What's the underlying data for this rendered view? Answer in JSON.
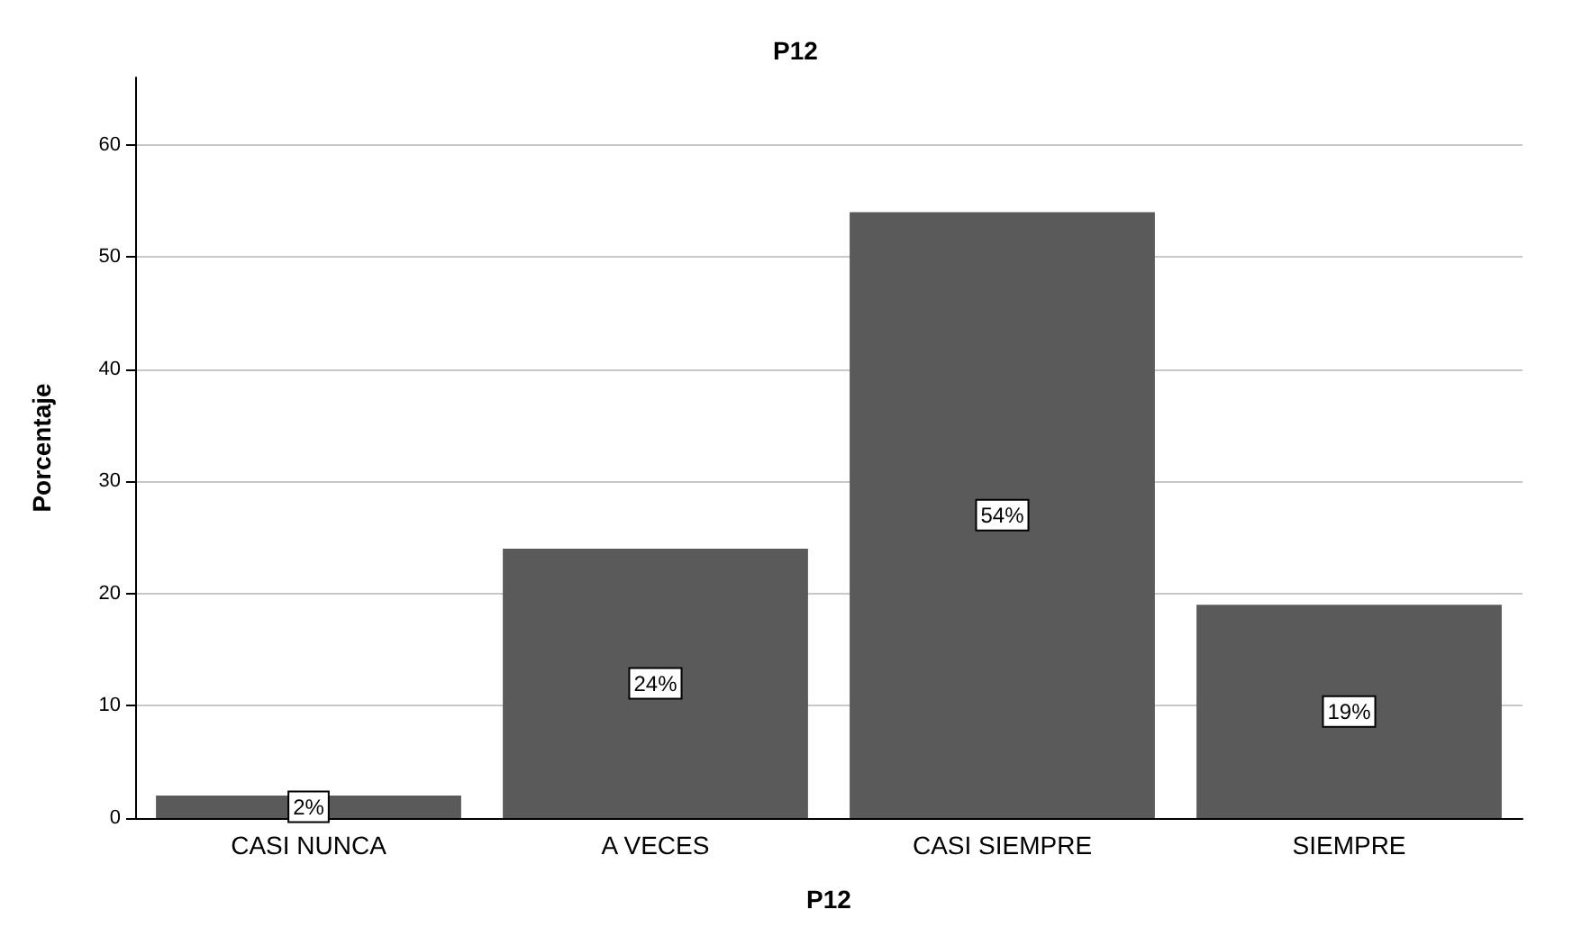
{
  "chart_data": {
    "type": "bar",
    "title": "P12",
    "xlabel": "P12",
    "ylabel": "Porcentaje",
    "categories": [
      "CASI NUNCA",
      "A VECES",
      "CASI SIEMPRE",
      "SIEMPRE"
    ],
    "values": [
      2,
      24,
      54,
      19
    ],
    "value_labels": [
      "2%",
      "24%",
      "54%",
      "19%"
    ],
    "color": "#5a5a5a",
    "ylim": [
      0,
      66
    ],
    "yticks": [
      0,
      10,
      20,
      30,
      40,
      50,
      60
    ],
    "grid": "y"
  }
}
